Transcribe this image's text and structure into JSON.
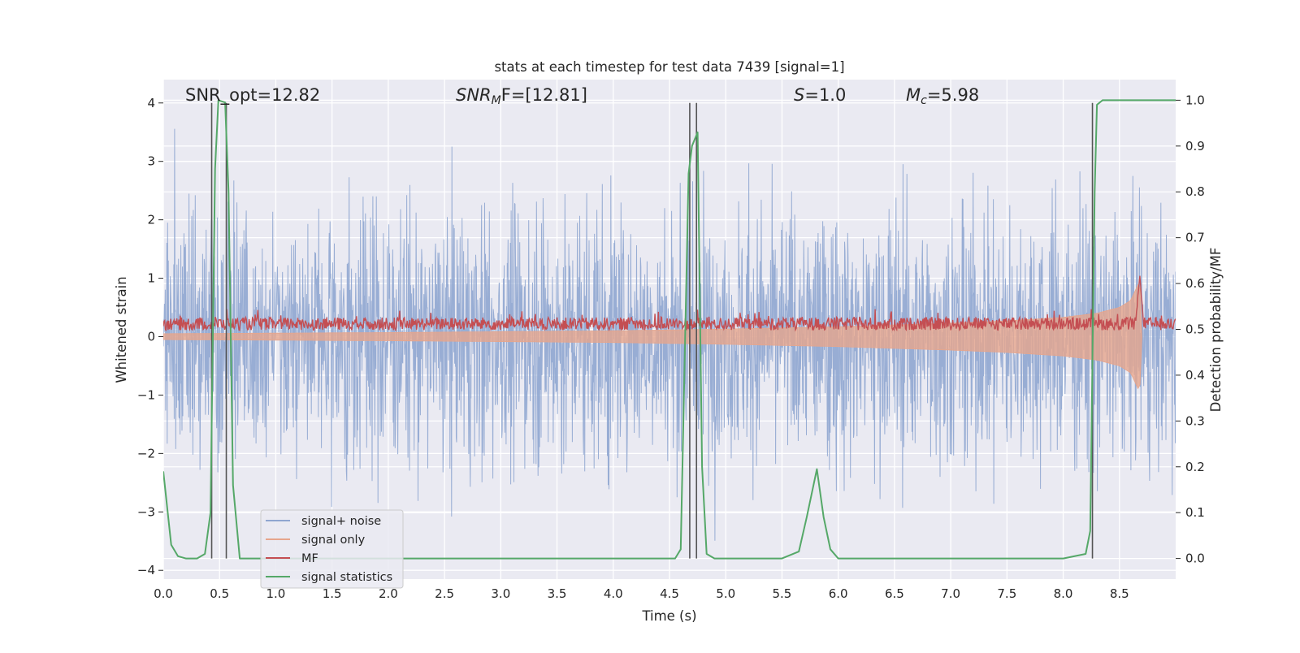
{
  "chart_data": {
    "type": "line",
    "title": "stats at each timestep for test data 7439 [signal=1]",
    "xlabel": "Time (s)",
    "ylabel_left": "Whitened strain",
    "ylabel_right": "Detection probability/MF",
    "xlim": [
      0.0,
      9.0
    ],
    "ylim_left": [
      -4.15,
      4.4
    ],
    "ylim_right": [
      -0.045,
      1.045
    ],
    "x_ticks": [
      "0.0",
      "0.5",
      "1.0",
      "1.5",
      "2.0",
      "2.5",
      "3.0",
      "3.5",
      "4.0",
      "4.5",
      "5.0",
      "5.5",
      "6.0",
      "6.5",
      "7.0",
      "7.5",
      "8.0",
      "8.5"
    ],
    "y_ticks_left": [
      "−4",
      "−3",
      "−2",
      "−1",
      "0",
      "1",
      "2",
      "3",
      "4"
    ],
    "y_ticks_right": [
      "0.0",
      "0.1",
      "0.2",
      "0.3",
      "0.4",
      "0.5",
      "0.6",
      "0.7",
      "0.8",
      "0.9",
      "1.0"
    ],
    "grid": true,
    "legend_position": "lower-left",
    "annotations": {
      "snr_opt": "SNR_opt=12.82",
      "snr_mf_prefix": "SNR",
      "snr_mf_sub": "M",
      "snr_mf_suffix": "F=[12.81]",
      "s_var": "S",
      "s_value": "=1.0",
      "mc_var": "M",
      "mc_sub": "c",
      "mc_value": "=5.98"
    },
    "vertical_lines_x": [
      0.43,
      0.56,
      4.68,
      4.74,
      8.26
    ],
    "series": [
      {
        "name": "signal+ noise",
        "axis": "left",
        "color": "#8fa6d0",
        "description_range": [
          -3.6,
          4.0
        ]
      },
      {
        "name": "signal only",
        "axis": "left",
        "color": "#e6a58c",
        "envelope": {
          "x": [
            0.0,
            2.0,
            4.0,
            5.0,
            6.0,
            7.0,
            7.5,
            8.0,
            8.3,
            8.5,
            8.6,
            8.68,
            8.7
          ],
          "amp": [
            0.05,
            0.07,
            0.1,
            0.13,
            0.17,
            0.23,
            0.27,
            0.33,
            0.4,
            0.5,
            0.62,
            0.95,
            0.0
          ]
        }
      },
      {
        "name": "MF",
        "axis": "right",
        "color": "#c44e52",
        "baseline": 0.5,
        "peak": {
          "x": 8.68,
          "y": 0.62
        }
      },
      {
        "name": "signal statistics",
        "axis": "right",
        "color": "#55a868",
        "x": [
          0.0,
          0.07,
          0.13,
          0.2,
          0.3,
          0.37,
          0.42,
          0.46,
          0.49,
          0.55,
          0.58,
          0.62,
          0.68,
          0.8,
          1.0,
          2.0,
          3.0,
          4.0,
          4.55,
          4.6,
          4.67,
          4.7,
          4.75,
          4.79,
          4.83,
          4.9,
          5.0,
          5.5,
          5.65,
          5.72,
          5.81,
          5.87,
          5.93,
          6.0,
          6.1,
          7.0,
          8.0,
          8.2,
          8.24,
          8.28,
          8.3,
          8.35,
          8.4,
          8.5,
          9.0
        ],
        "y": [
          0.19,
          0.03,
          0.005,
          0.0,
          0.0,
          0.01,
          0.1,
          0.85,
          1.0,
          0.995,
          0.8,
          0.16,
          0.0,
          0.0,
          0.0,
          0.0,
          0.0,
          0.0,
          0.0,
          0.02,
          0.84,
          0.9,
          0.93,
          0.2,
          0.01,
          0.0,
          0.0,
          0.0,
          0.015,
          0.09,
          0.195,
          0.09,
          0.02,
          0.0,
          0.0,
          0.0,
          0.0,
          0.01,
          0.06,
          0.8,
          0.99,
          1.0,
          1.0,
          1.0,
          1.0
        ]
      }
    ],
    "legend": [
      "signal+ noise",
      "signal only",
      "MF",
      "signal statistics"
    ]
  }
}
